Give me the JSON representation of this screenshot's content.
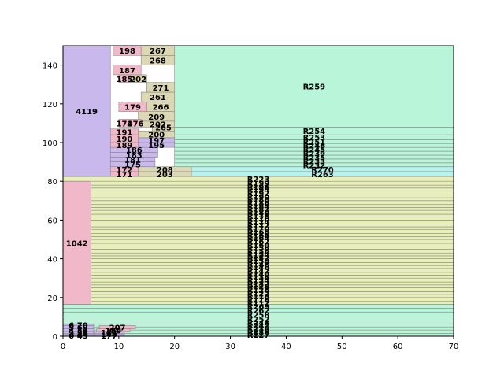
{
  "chart_data": {
    "type": "treemap-stacked-bars",
    "title": "",
    "xlabel": "",
    "ylabel": "",
    "xlim": [
      0,
      70
    ],
    "ylim": [
      0,
      150
    ],
    "x_ticks": [
      "0",
      "10",
      "20",
      "30",
      "40",
      "50",
      "60",
      "70"
    ],
    "y_ticks": [
      "0",
      "20",
      "40",
      "60",
      "80",
      "100",
      "120",
      "140"
    ],
    "colors": {
      "green": "#b9f5d8",
      "yellow": "#e8f0b8",
      "purple": "#c8b8ec",
      "pink": "#f0b8c8",
      "tan": "#dcd8b4",
      "cyan": "#b8f2ec"
    },
    "regions": [
      {
        "label": "R227",
        "x0": 0,
        "x1": 70,
        "y0": 0,
        "y1": 1.5,
        "color": "green"
      },
      {
        "label": "R236",
        "x0": 0,
        "x1": 70,
        "y0": 1.5,
        "y1": 3.2,
        "color": "green"
      },
      {
        "label": "R238",
        "x0": 0,
        "x1": 70,
        "y0": 3.2,
        "y1": 4.8,
        "color": "green"
      },
      {
        "label": "R242",
        "x0": 0,
        "x1": 70,
        "y0": 4.8,
        "y1": 6.4,
        "color": "green"
      },
      {
        "label": "R248",
        "x0": 0,
        "x1": 70,
        "y0": 6.4,
        "y1": 8.0,
        "color": "green"
      },
      {
        "label": "R252",
        "x0": 0,
        "x1": 70,
        "y0": 8.0,
        "y1": 10.0,
        "color": "green"
      },
      {
        "label": "R258",
        "x0": 0,
        "x1": 70,
        "y0": 10.0,
        "y1": 12.5,
        "color": "green"
      },
      {
        "label": "R262",
        "x0": 0,
        "x1": 70,
        "y0": 12.5,
        "y1": 14.5,
        "color": "green"
      },
      {
        "label": "R269",
        "x0": 0,
        "x1": 70,
        "y0": 14.5,
        "y1": 16.5,
        "color": "green"
      },
      {
        "label": "R112",
        "x0": 0,
        "x1": 70,
        "y0": 16.5,
        "y1": 18.0,
        "color": "yellow"
      },
      {
        "label": "R116",
        "x0": 0,
        "x1": 70,
        "y0": 18.0,
        "y1": 20.0,
        "color": "yellow"
      },
      {
        "label": "R118",
        "x0": 0,
        "x1": 70,
        "y0": 20.0,
        "y1": 21.5,
        "color": "yellow"
      },
      {
        "label": "R122",
        "x0": 0,
        "x1": 70,
        "y0": 21.5,
        "y1": 23.0,
        "color": "yellow"
      },
      {
        "label": "R126",
        "x0": 0,
        "x1": 70,
        "y0": 23.0,
        "y1": 25.0,
        "color": "yellow"
      },
      {
        "label": "R128",
        "x0": 0,
        "x1": 70,
        "y0": 25.0,
        "y1": 26.5,
        "color": "yellow"
      },
      {
        "label": "R132",
        "x0": 0,
        "x1": 70,
        "y0": 26.5,
        "y1": 28.0,
        "color": "yellow"
      },
      {
        "label": "R134",
        "x0": 0,
        "x1": 70,
        "y0": 28.0,
        "y1": 30.0,
        "color": "yellow"
      },
      {
        "label": "R138",
        "x0": 0,
        "x1": 70,
        "y0": 30.0,
        "y1": 31.5,
        "color": "yellow"
      },
      {
        "label": "R140",
        "x0": 0,
        "x1": 70,
        "y0": 31.5,
        "y1": 33.0,
        "color": "yellow"
      },
      {
        "label": "R142",
        "x0": 0,
        "x1": 70,
        "y0": 33.0,
        "y1": 35.0,
        "color": "yellow"
      },
      {
        "label": "R146",
        "x0": 0,
        "x1": 70,
        "y0": 35.0,
        "y1": 36.5,
        "color": "yellow"
      },
      {
        "label": "R148",
        "x0": 0,
        "x1": 70,
        "y0": 36.5,
        "y1": 38.0,
        "color": "yellow"
      },
      {
        "label": "R150",
        "x0": 0,
        "x1": 70,
        "y0": 38.0,
        "y1": 40.0,
        "color": "yellow"
      },
      {
        "label": "R152",
        "x0": 0,
        "x1": 70,
        "y0": 40.0,
        "y1": 41.5,
        "color": "yellow"
      },
      {
        "label": "R154",
        "x0": 0,
        "x1": 70,
        "y0": 41.5,
        "y1": 43.0,
        "color": "yellow"
      },
      {
        "label": "R156",
        "x0": 0,
        "x1": 70,
        "y0": 43.0,
        "y1": 45.0,
        "color": "yellow"
      },
      {
        "label": "R158",
        "x0": 0,
        "x1": 70,
        "y0": 45.0,
        "y1": 46.5,
        "color": "yellow"
      },
      {
        "label": "R160",
        "x0": 0,
        "x1": 70,
        "y0": 46.5,
        "y1": 48.0,
        "color": "yellow"
      },
      {
        "label": "R162",
        "x0": 0,
        "x1": 70,
        "y0": 48.0,
        "y1": 50.0,
        "color": "yellow"
      },
      {
        "label": "R164",
        "x0": 0,
        "x1": 70,
        "y0": 50.0,
        "y1": 51.5,
        "color": "yellow"
      },
      {
        "label": "R166",
        "x0": 0,
        "x1": 70,
        "y0": 51.5,
        "y1": 53.0,
        "color": "yellow"
      },
      {
        "label": "R168",
        "x0": 0,
        "x1": 70,
        "y0": 53.0,
        "y1": 55.0,
        "color": "yellow"
      },
      {
        "label": "R170",
        "x0": 0,
        "x1": 70,
        "y0": 55.0,
        "y1": 56.5,
        "color": "yellow"
      },
      {
        "label": "R172",
        "x0": 0,
        "x1": 70,
        "y0": 56.5,
        "y1": 58.0,
        "color": "yellow"
      },
      {
        "label": "R174",
        "x0": 0,
        "x1": 70,
        "y0": 58.0,
        "y1": 60.0,
        "color": "yellow"
      },
      {
        "label": "R176",
        "x0": 0,
        "x1": 70,
        "y0": 60.0,
        "y1": 61.5,
        "color": "yellow"
      },
      {
        "label": "R178",
        "x0": 0,
        "x1": 70,
        "y0": 61.5,
        "y1": 63.0,
        "color": "yellow"
      },
      {
        "label": "R180",
        "x0": 0,
        "x1": 70,
        "y0": 63.0,
        "y1": 65.0,
        "color": "yellow"
      },
      {
        "label": "R182",
        "x0": 0,
        "x1": 70,
        "y0": 65.0,
        "y1": 66.5,
        "color": "yellow"
      },
      {
        "label": "R184",
        "x0": 0,
        "x1": 70,
        "y0": 66.5,
        "y1": 68.0,
        "color": "yellow"
      },
      {
        "label": "R186",
        "x0": 0,
        "x1": 70,
        "y0": 68.0,
        "y1": 70.0,
        "color": "yellow"
      },
      {
        "label": "R188",
        "x0": 0,
        "x1": 70,
        "y0": 70.0,
        "y1": 71.5,
        "color": "yellow"
      },
      {
        "label": "R190",
        "x0": 0,
        "x1": 70,
        "y0": 71.5,
        "y1": 73.0,
        "color": "yellow"
      },
      {
        "label": "R192",
        "x0": 0,
        "x1": 70,
        "y0": 73.0,
        "y1": 75.0,
        "color": "yellow"
      },
      {
        "label": "R194",
        "x0": 0,
        "x1": 70,
        "y0": 75.0,
        "y1": 76.5,
        "color": "yellow"
      },
      {
        "label": "R196",
        "x0": 0,
        "x1": 70,
        "y0": 76.5,
        "y1": 78.0,
        "color": "yellow"
      },
      {
        "label": "R199",
        "x0": 0,
        "x1": 70,
        "y0": 78.0,
        "y1": 80.0,
        "color": "yellow"
      },
      {
        "label": "R223",
        "x0": 0,
        "x1": 70,
        "y0": 80.0,
        "y1": 82.5,
        "color": "yellow"
      },
      {
        "label": "R263",
        "x0": 23,
        "x1": 70,
        "y0": 82.5,
        "y1": 85.0,
        "color": "cyan"
      },
      {
        "label": "R270",
        "x0": 23,
        "x1": 70,
        "y0": 85.0,
        "y1": 87.5,
        "color": "cyan"
      },
      {
        "label": "R232",
        "x0": 20,
        "x1": 70,
        "y0": 87.5,
        "y1": 89.5,
        "color": "green"
      },
      {
        "label": "R233",
        "x0": 20,
        "x1": 70,
        "y0": 89.5,
        "y1": 91.5,
        "color": "green"
      },
      {
        "label": "R235",
        "x0": 20,
        "x1": 70,
        "y0": 91.5,
        "y1": 93.5,
        "color": "green"
      },
      {
        "label": "R239",
        "x0": 20,
        "x1": 70,
        "y0": 93.5,
        "y1": 95.5,
        "color": "green"
      },
      {
        "label": "R245",
        "x0": 20,
        "x1": 70,
        "y0": 95.5,
        "y1": 97.5,
        "color": "green"
      },
      {
        "label": "R246",
        "x0": 20,
        "x1": 70,
        "y0": 97.5,
        "y1": 99.5,
        "color": "green"
      },
      {
        "label": "R251",
        "x0": 20,
        "x1": 70,
        "y0": 99.5,
        "y1": 101.5,
        "color": "green"
      },
      {
        "label": "R253",
        "x0": 20,
        "x1": 70,
        "y0": 101.5,
        "y1": 104.0,
        "color": "green"
      },
      {
        "label": "R254",
        "x0": 20,
        "x1": 70,
        "y0": 104.0,
        "y1": 108.0,
        "color": "green"
      },
      {
        "label": "R259",
        "x0": 20,
        "x1": 70,
        "y0": 108.0,
        "y1": 150.0,
        "color": "green"
      },
      {
        "label": "203",
        "x0": 13.5,
        "x1": 23,
        "y0": 82.5,
        "y1": 85.0,
        "color": "tan"
      },
      {
        "label": "208",
        "x0": 13.5,
        "x1": 23,
        "y0": 85.0,
        "y1": 87.5,
        "color": "tan"
      },
      {
        "label": "171",
        "x0": 8.5,
        "x1": 13.5,
        "y0": 82.5,
        "y1": 85.0,
        "color": "pink"
      },
      {
        "label": "172",
        "x0": 8.5,
        "x1": 13.5,
        "y0": 85.0,
        "y1": 87.5,
        "color": "pink"
      },
      {
        "label": "175",
        "x0": 8.5,
        "x1": 16.5,
        "y0": 87.5,
        "y1": 90.0,
        "color": "purple"
      },
      {
        "label": "181",
        "x0": 8.5,
        "x1": 16.5,
        "y0": 90.0,
        "y1": 92.5,
        "color": "purple"
      },
      {
        "label": "183",
        "x0": 8.5,
        "x1": 17,
        "y0": 92.5,
        "y1": 95.0,
        "color": "purple"
      },
      {
        "label": "186",
        "x0": 8.5,
        "x1": 17,
        "y0": 95.0,
        "y1": 97.5,
        "color": "purple"
      },
      {
        "label": "195",
        "x0": 13.5,
        "x1": 20,
        "y0": 97.5,
        "y1": 100.0,
        "color": "purple"
      },
      {
        "label": "197",
        "x0": 13.5,
        "x1": 20,
        "y0": 100.0,
        "y1": 102.5,
        "color": "purple"
      },
      {
        "label": "200",
        "x0": 13.5,
        "x1": 20,
        "y0": 102.5,
        "y1": 106.0,
        "color": "tan"
      },
      {
        "label": "191",
        "x0": 8.5,
        "x1": 13.5,
        "y0": 104.0,
        "y1": 107.0,
        "color": "pink"
      },
      {
        "label": "190",
        "x0": 8.5,
        "x1": 13.5,
        "y0": 100.0,
        "y1": 104.0,
        "color": "pink"
      },
      {
        "label": "189",
        "x0": 8.5,
        "x1": 13.5,
        "y0": 97.5,
        "y1": 100.0,
        "color": "pink"
      },
      {
        "label": "265",
        "x0": 16,
        "x1": 20,
        "y0": 106.0,
        "y1": 110.0,
        "color": "tan"
      },
      {
        "label": "209",
        "x0": 13.5,
        "x1": 20,
        "y0": 111.0,
        "y1": 116.0,
        "color": "tan"
      },
      {
        "label": "202",
        "x0": 14,
        "x1": 20,
        "y0": 108.0,
        "y1": 111.0,
        "color": "tan"
      },
      {
        "label": "176",
        "x0": 12,
        "x1": 14,
        "y0": 108.0,
        "y1": 112.0,
        "color": "pink"
      },
      {
        "label": "174",
        "x0": 10,
        "x1": 12,
        "y0": 108.0,
        "y1": 112.0,
        "color": "pink"
      },
      {
        "label": "266",
        "x0": 15,
        "x1": 20,
        "y0": 116.0,
        "y1": 121.0,
        "color": "tan"
      },
      {
        "label": "179",
        "x0": 10,
        "x1": 15,
        "y0": 116.0,
        "y1": 121.0,
        "color": "pink"
      },
      {
        "label": "261",
        "x0": 14,
        "x1": 20,
        "y0": 121.0,
        "y1": 126.0,
        "color": "tan"
      },
      {
        "label": "271",
        "x0": 15,
        "x1": 20,
        "y0": 126.0,
        "y1": 131.0,
        "color": "tan"
      },
      {
        "label": "202",
        "x0": 12,
        "x1": 15,
        "y0": 131.0,
        "y1": 135.0,
        "color": "tan"
      },
      {
        "label": "185",
        "x0": 10,
        "x1": 12,
        "y0": 131.0,
        "y1": 135.0,
        "color": "pink"
      },
      {
        "label": "187",
        "x0": 9,
        "x1": 14,
        "y0": 135.0,
        "y1": 140.0,
        "color": "pink"
      },
      {
        "label": "268",
        "x0": 14,
        "x1": 20,
        "y0": 140.0,
        "y1": 145.0,
        "color": "tan"
      },
      {
        "label": "198",
        "x0": 9,
        "x1": 14,
        "y0": 145.0,
        "y1": 150.0,
        "color": "pink"
      },
      {
        "label": "267",
        "x0": 14,
        "x1": 20,
        "y0": 145.0,
        "y1": 150.0,
        "color": "tan"
      },
      {
        "label": "207",
        "x0": 6.5,
        "x1": 13,
        "y0": 3.8,
        "y1": 5.5,
        "color": "pink"
      },
      {
        "label": "189",
        "x0": 6,
        "x1": 12,
        "y0": 2.5,
        "y1": 3.8,
        "color": "pink"
      },
      {
        "label": "182",
        "x0": 5.5,
        "x1": 11,
        "y0": 1.5,
        "y1": 2.5,
        "color": "purple"
      },
      {
        "label": "144",
        "x0": 5.5,
        "x1": 11,
        "y0": 0.8,
        "y1": 1.5,
        "color": "purple"
      },
      {
        "label": "177",
        "x0": 5.5,
        "x1": 11,
        "y0": 0,
        "y1": 0.8,
        "color": "purple"
      },
      {
        "label": "6 70",
        "x0": 0,
        "x1": 5.5,
        "y0": 5.5,
        "y1": 6.4,
        "color": "purple"
      },
      {
        "label": "5 69",
        "x0": 0,
        "x1": 5.5,
        "y0": 3.8,
        "y1": 5.5,
        "color": "purple"
      },
      {
        "label": "4 56",
        "x0": 0,
        "x1": 5.5,
        "y0": 2.5,
        "y1": 3.8,
        "color": "purple"
      },
      {
        "label": "3 54",
        "x0": 0,
        "x1": 5.5,
        "y0": 1.5,
        "y1": 2.5,
        "color": "purple"
      },
      {
        "label": "2 44",
        "x0": 0,
        "x1": 5.5,
        "y0": 0.8,
        "y1": 1.5,
        "color": "purple"
      },
      {
        "label": "0 43",
        "x0": 0,
        "x1": 5.5,
        "y0": 0,
        "y1": 0.8,
        "color": "purple"
      },
      {
        "label": "1042",
        "x0": 0,
        "x1": 5,
        "y0": 16.5,
        "y1": 80,
        "color": "pink"
      },
      {
        "label": "4119",
        "x0": 0,
        "x1": 8.5,
        "y0": 82.5,
        "y1": 150,
        "color": "purple"
      }
    ]
  }
}
